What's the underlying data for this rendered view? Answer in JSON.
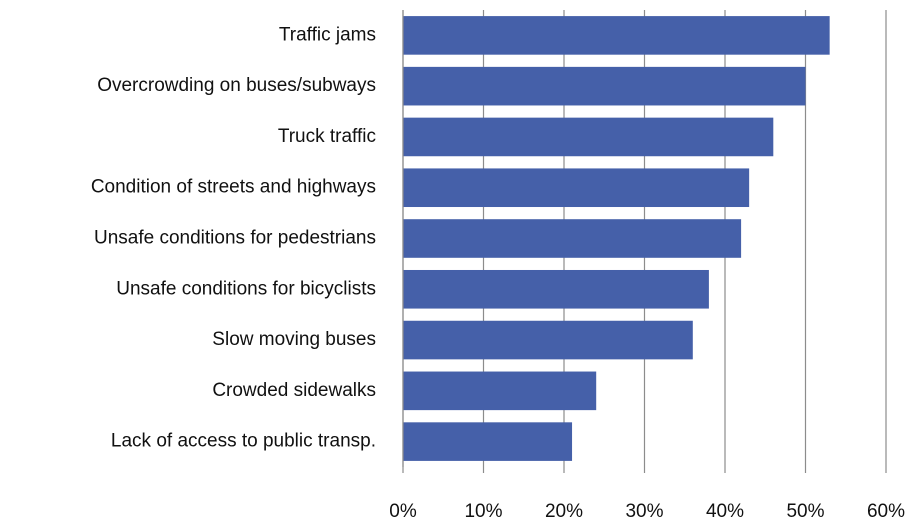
{
  "chart_data": {
    "type": "bar",
    "orientation": "horizontal",
    "categories": [
      "Traffic jams",
      "Overcrowding on buses/subways",
      "Truck traffic",
      "Condition of streets and highways",
      "Unsafe conditions for pedestrians",
      "Unsafe conditions for bicyclists",
      "Slow moving buses",
      "Crowded sidewalks",
      "Lack of access to public transp."
    ],
    "values": [
      53,
      50,
      46,
      43,
      42,
      38,
      36,
      24,
      21
    ],
    "color": "#4560a9",
    "xlim": [
      0,
      60
    ],
    "xticks": [
      {
        "value": 0,
        "label": "0%"
      },
      {
        "value": 10,
        "label": "10%"
      },
      {
        "value": 20,
        "label": "20%"
      },
      {
        "value": 30,
        "label": "30%"
      },
      {
        "value": 40,
        "label": "40%"
      },
      {
        "value": 50,
        "label": "50%"
      },
      {
        "value": 60,
        "label": "60%"
      }
    ],
    "grid": true
  }
}
